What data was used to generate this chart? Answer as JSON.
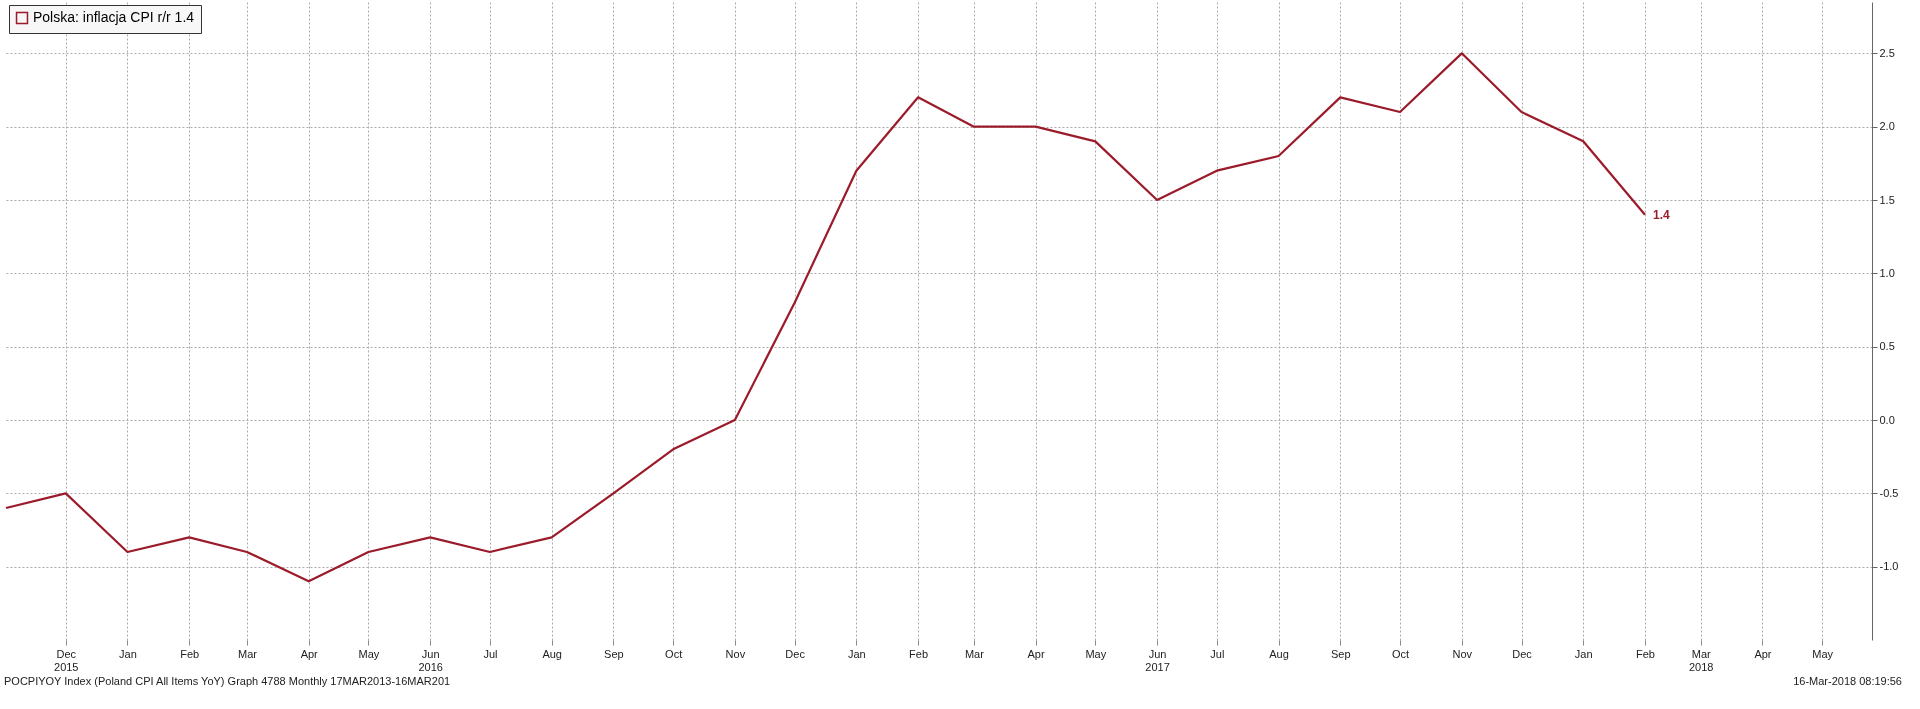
{
  "chart_data": {
    "type": "line",
    "x": [
      "2015-11",
      "2015-12",
      "2016-01",
      "2016-02",
      "2016-03",
      "2016-04",
      "2016-05",
      "2016-06",
      "2016-07",
      "2016-08",
      "2016-09",
      "2016-10",
      "2016-11",
      "2016-12",
      "2017-01",
      "2017-02",
      "2017-03",
      "2017-04",
      "2017-05",
      "2017-06",
      "2017-07",
      "2017-08",
      "2017-09",
      "2017-10",
      "2017-11",
      "2017-12",
      "2018-01",
      "2018-02"
    ],
    "series": [
      {
        "name": "Polska: inflacja CPI r/r 1.4",
        "color": "#9b1b2a",
        "values": [
          -0.6,
          -0.5,
          -0.9,
          -0.8,
          -0.9,
          -1.1,
          -0.9,
          -0.8,
          -0.9,
          -0.8,
          -0.5,
          -0.2,
          0.0,
          0.8,
          1.7,
          2.2,
          2.0,
          2.0,
          1.9,
          1.5,
          1.7,
          1.8,
          2.2,
          2.1,
          2.5,
          2.1,
          1.9,
          1.4
        ],
        "value_labels": [
          null,
          null,
          null,
          null,
          null,
          null,
          null,
          null,
          null,
          null,
          null,
          null,
          null,
          null,
          null,
          null,
          null,
          null,
          null,
          null,
          null,
          null,
          null,
          null,
          null,
          null,
          null,
          "1.4"
        ]
      }
    ],
    "xlim": [
      "2015-11",
      "2018-05-26"
    ],
    "xticks": [
      {
        "value": "2015-12",
        "label": "Dec\n2015"
      },
      {
        "value": "2016-01",
        "label": "Jan"
      },
      {
        "value": "2016-02",
        "label": "Feb"
      },
      {
        "value": "2016-03",
        "label": "Mar"
      },
      {
        "value": "2016-04",
        "label": "Apr"
      },
      {
        "value": "2016-05",
        "label": "May"
      },
      {
        "value": "2016-06",
        "label": "Jun\n2016"
      },
      {
        "value": "2016-07",
        "label": "Jul"
      },
      {
        "value": "2016-08",
        "label": "Aug"
      },
      {
        "value": "2016-09",
        "label": "Sep"
      },
      {
        "value": "2016-10",
        "label": "Oct"
      },
      {
        "value": "2016-11",
        "label": "Nov"
      },
      {
        "value": "2016-12",
        "label": "Dec"
      },
      {
        "value": "2017-01",
        "label": "Jan"
      },
      {
        "value": "2017-02",
        "label": "Feb"
      },
      {
        "value": "2017-03",
        "label": "Mar"
      },
      {
        "value": "2017-04",
        "label": "Apr"
      },
      {
        "value": "2017-05",
        "label": "May"
      },
      {
        "value": "2017-06",
        "label": "Jun\n2017"
      },
      {
        "value": "2017-07",
        "label": "Jul"
      },
      {
        "value": "2017-08",
        "label": "Aug"
      },
      {
        "value": "2017-09",
        "label": "Sep"
      },
      {
        "value": "2017-10",
        "label": "Oct"
      },
      {
        "value": "2017-11",
        "label": "Nov"
      },
      {
        "value": "2017-12",
        "label": "Dec"
      },
      {
        "value": "2018-01",
        "label": "Jan"
      },
      {
        "value": "2018-02",
        "label": "Feb"
      },
      {
        "value": "2018-03",
        "label": "Mar\n2018"
      },
      {
        "value": "2018-04",
        "label": "Apr"
      },
      {
        "value": "2018-05",
        "label": "May"
      }
    ],
    "ylim": [
      -1.5,
      2.85
    ],
    "yticks": [
      {
        "value": -1,
        "label": "-1.0"
      },
      {
        "value": -0.5,
        "label": "-0.5"
      },
      {
        "value": 0,
        "label": "0.0"
      },
      {
        "value": 0.5,
        "label": "0.5"
      },
      {
        "value": 1,
        "label": "1.0"
      },
      {
        "value": 1.5,
        "label": "1.5"
      },
      {
        "value": 2,
        "label": "2.0"
      },
      {
        "value": 2.5,
        "label": "2.5"
      }
    ],
    "grid": true,
    "legend": "top left",
    "line_style": "solid",
    "annotations": [
      "POCPIYOY Index (Poland CPI All Items YoY) Graph 4788 Monthly 17MAR2013-16MAR201",
      "16-Mar-2018 08:19:56"
    ]
  }
}
